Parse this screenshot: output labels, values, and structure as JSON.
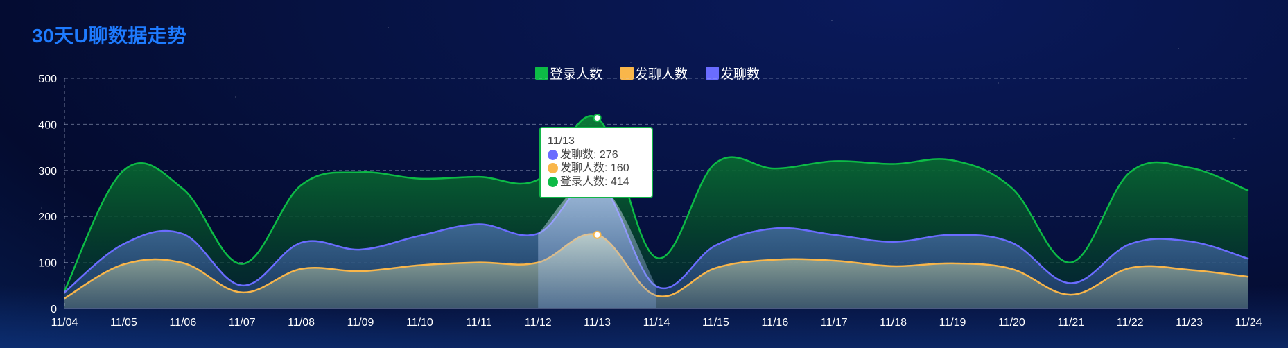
{
  "chart_data": {
    "type": "area",
    "title": "30天U聊数据走势",
    "categories": [
      "11/04",
      "11/05",
      "11/06",
      "11/07",
      "11/08",
      "11/09",
      "11/10",
      "11/11",
      "11/12",
      "11/13",
      "11/14",
      "11/15",
      "11/16",
      "11/17",
      "11/18",
      "11/19",
      "11/20",
      "11/21",
      "11/22",
      "11/23",
      "11/24"
    ],
    "series": [
      {
        "name": "登录人数",
        "color": "#0dbb46",
        "values": [
          38,
          300,
          260,
          97,
          268,
          296,
          282,
          286,
          280,
          414,
          110,
          316,
          304,
          320,
          314,
          322,
          262,
          100,
          296,
          306,
          256
        ]
      },
      {
        "name": "发聊人数",
        "color": "#f9b64a",
        "values": [
          22,
          96,
          99,
          35,
          86,
          81,
          94,
          100,
          100,
          160,
          28,
          88,
          106,
          104,
          92,
          98,
          86,
          30,
          88,
          84,
          69
        ]
      },
      {
        "name": "发聊数",
        "color": "#6a6cff",
        "values": [
          35,
          140,
          162,
          50,
          143,
          128,
          158,
          183,
          163,
          276,
          48,
          137,
          174,
          160,
          145,
          160,
          143,
          55,
          140,
          146,
          108
        ]
      }
    ],
    "ylim": [
      0,
      500
    ],
    "yticks": [
      0,
      100,
      200,
      300,
      400,
      500
    ],
    "grid": true,
    "legend_position": "top-center",
    "tooltip": {
      "category": "11/13",
      "rows": [
        {
          "label": "发聊数: 276",
          "color": "#6a6cff"
        },
        {
          "label": "发聊人数: 160",
          "color": "#f9b64a"
        },
        {
          "label": "登录人数: 414",
          "color": "#0dbb46"
        }
      ]
    }
  }
}
